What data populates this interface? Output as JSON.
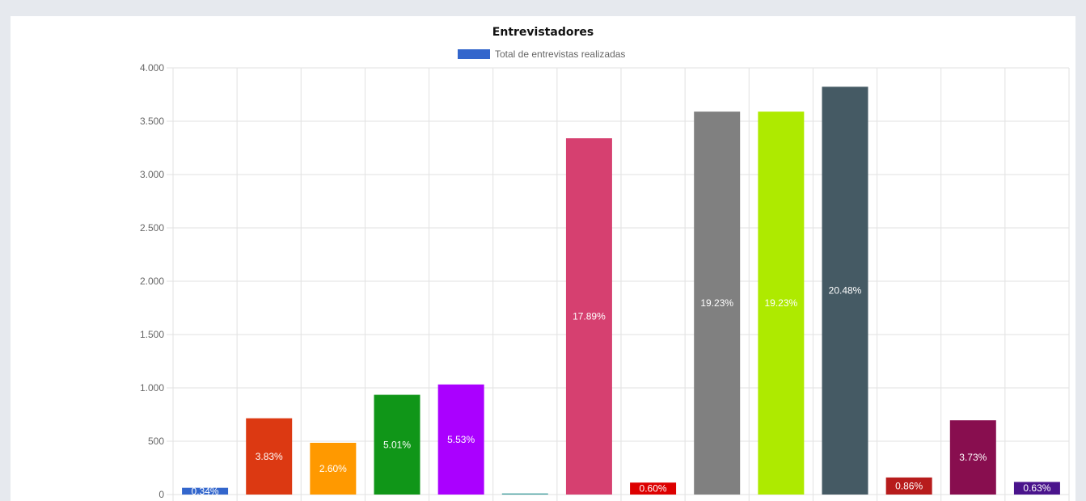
{
  "chart_data": {
    "type": "bar",
    "title": "Entrevistadores",
    "categories": [
      "",
      "",
      "",
      "",
      "",
      "",
      "",
      "",
      "",
      "",
      "",
      "",
      "",
      ""
    ],
    "series": [
      {
        "name": "Total de entrevistas realizadas",
        "color": "#3366cc",
        "values": [
          63,
          715,
          485,
          935,
          1032,
          10,
          3340,
          112,
          3590,
          3590,
          3823,
          160,
          696,
          118
        ],
        "colors": [
          "#3366cc",
          "#dc3912",
          "#ff9900",
          "#109618",
          "#aa00ff",
          "#3b9c9c",
          "#d64070",
          "#dd0000",
          "#808080",
          "#aeea00",
          "#455a64",
          "#b71c1c",
          "#880e4f",
          "#4a148c"
        ],
        "labels": [
          "0.34%",
          "3.83%",
          "2.60%",
          "5.01%",
          "5.53%",
          "",
          "17.89%",
          "0.60%",
          "19.23%",
          "19.23%",
          "20.48%",
          "0.86%",
          "3.73%",
          "0.63%"
        ]
      }
    ],
    "ylim": [
      0,
      4000
    ],
    "yticks": [
      0,
      500,
      1000,
      1500,
      2000,
      2500,
      3000,
      3500,
      4000
    ],
    "ytick_labels": [
      "0",
      "500",
      "1.000",
      "1.500",
      "2.000",
      "2.500",
      "3.000",
      "3.500",
      "4.000"
    ],
    "xlabel": "",
    "ylabel": "",
    "grid": true,
    "legend_position": "top"
  }
}
